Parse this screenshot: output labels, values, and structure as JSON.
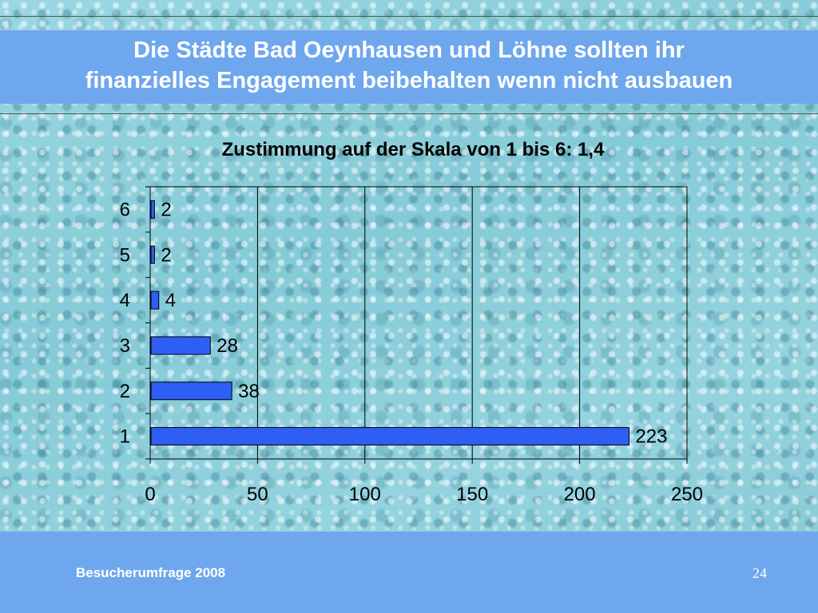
{
  "slide": {
    "title_line1": "Die Städte Bad Oeynhausen und Löhne sollten ihr",
    "title_line2": "finanzielles Engagement beibehalten wenn nicht ausbauen",
    "footer": "Besucherumfrage 2008",
    "page_number": "24"
  },
  "colors": {
    "band": "#6fa7ee",
    "bar_fill": "#2f5ef5",
    "background": "#8fd0dc"
  },
  "chart_data": {
    "type": "bar",
    "orientation": "horizontal",
    "title": "Zustimmung auf der Skala von 1 bis 6: 1,4",
    "categories": [
      "1",
      "2",
      "3",
      "4",
      "5",
      "6"
    ],
    "values": [
      223,
      38,
      28,
      4,
      2,
      2
    ],
    "value_labels": [
      "223",
      "38",
      "28",
      "4",
      "2",
      "2"
    ],
    "xlim": [
      0,
      250
    ],
    "xticks": [
      0,
      50,
      100,
      150,
      200,
      250
    ],
    "xtick_labels": [
      "0",
      "50",
      "100",
      "150",
      "200",
      "250"
    ],
    "xlabel": "",
    "ylabel": "",
    "grid": "vertical major gridlines",
    "legend": "none"
  }
}
